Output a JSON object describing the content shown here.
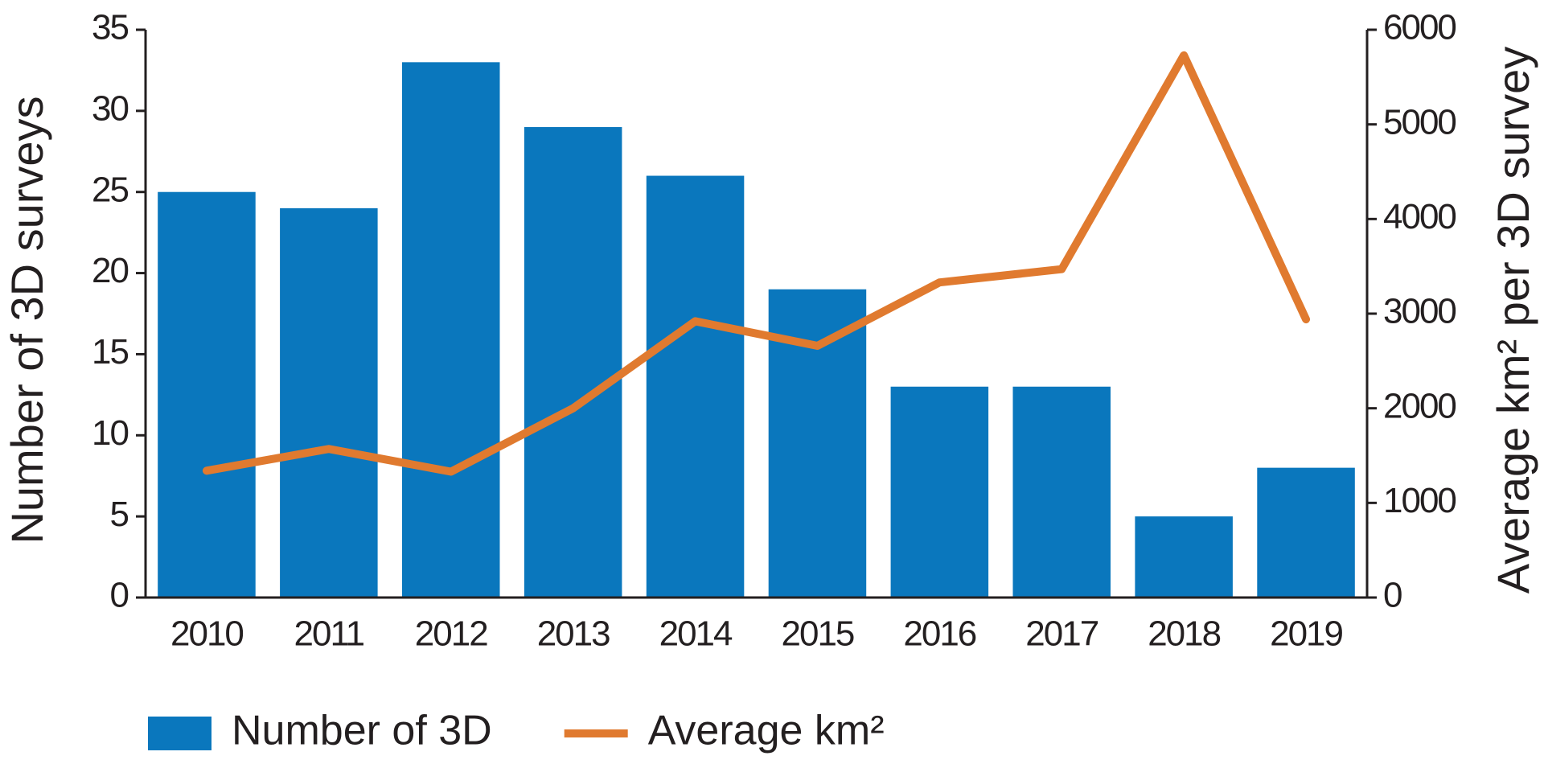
{
  "chart_data": {
    "type": "bar",
    "categories": [
      "2010",
      "2011",
      "2012",
      "2013",
      "2014",
      "2015",
      "2016",
      "2017",
      "2018",
      "2019"
    ],
    "y_label": "Number of 3D surveys",
    "y2_label": "Average km² per 3D survey",
    "ylim": [
      0,
      35
    ],
    "yticks": [
      0,
      5,
      10,
      15,
      20,
      25,
      30,
      35
    ],
    "y2lim": [
      0,
      6000
    ],
    "y2ticks": [
      0,
      1000,
      2000,
      3000,
      4000,
      5000,
      6000
    ],
    "grid": false,
    "legend": "bottom",
    "series": [
      {
        "name": "Number of 3D",
        "type": "bar",
        "color": "#0a77bd",
        "values": [
          25,
          24,
          33,
          29,
          26,
          19,
          13,
          13,
          5,
          8
        ]
      },
      {
        "name": "Average km²",
        "type": "line",
        "axis": "y2",
        "color": "#e07a2f",
        "values": [
          1340,
          1570,
          1330,
          2000,
          2920,
          2660,
          3330,
          3470,
          5730,
          2940
        ]
      }
    ]
  }
}
